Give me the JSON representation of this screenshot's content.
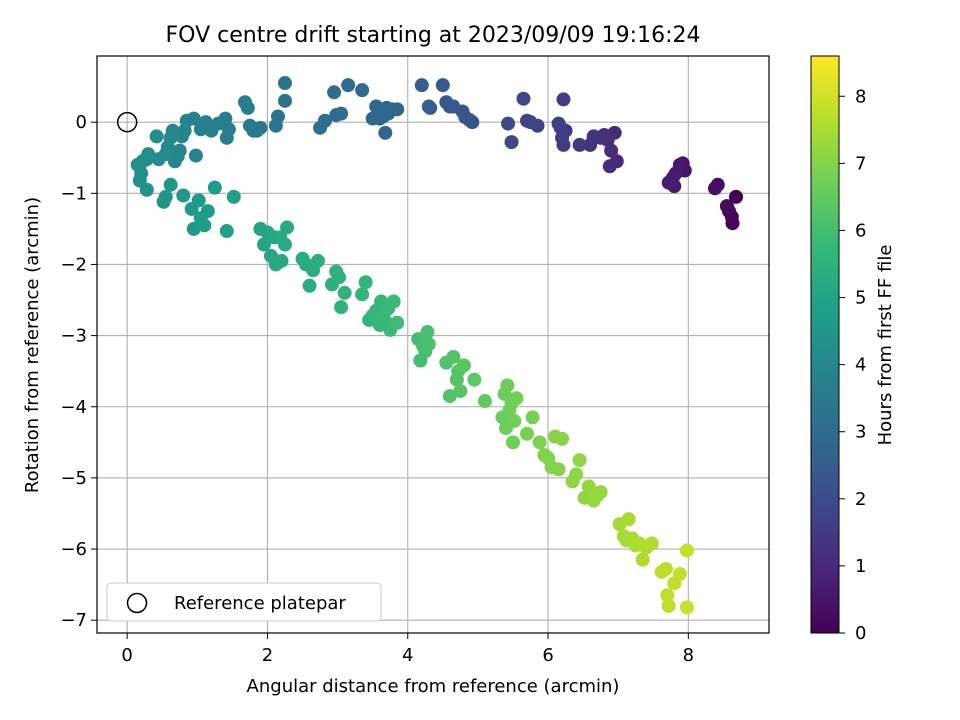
{
  "chart_data": {
    "type": "scatter",
    "title": "FOV centre drift starting at 2023/09/09 19:16:24",
    "xlabel": "Angular distance from reference (arcmin)",
    "ylabel": "Rotation from reference (arcmin)",
    "xlim": [
      -0.43,
      9.15
    ],
    "ylim": [
      -7.18,
      0.93
    ],
    "xticks": [
      0,
      2,
      4,
      6,
      8
    ],
    "yticks": [
      0,
      -1,
      -2,
      -3,
      -4,
      -5,
      -6,
      -7
    ],
    "grid": true,
    "colormap": "viridis",
    "colorbar": {
      "label": "Hours from first FF file",
      "range": [
        0,
        8.6
      ],
      "ticks": [
        0,
        1,
        2,
        3,
        4,
        5,
        6,
        7,
        8
      ]
    },
    "legend": {
      "position": "lower-left",
      "entries": [
        "Reference platepar"
      ]
    },
    "reference_point": {
      "x": 0,
      "y": 0,
      "label": "Reference platepar"
    },
    "points": [
      [
        8.68,
        -1.05,
        0.02
      ],
      [
        8.63,
        -1.42,
        0.1
      ],
      [
        8.62,
        -1.33,
        0.15
      ],
      [
        8.58,
        -1.25,
        0.2
      ],
      [
        8.55,
        -1.18,
        0.25
      ],
      [
        8.42,
        -0.88,
        0.3
      ],
      [
        8.38,
        -0.93,
        0.35
      ],
      [
        7.95,
        -0.68,
        0.5
      ],
      [
        7.92,
        -0.58,
        0.55
      ],
      [
        7.88,
        -0.6,
        0.6
      ],
      [
        7.82,
        -0.72,
        0.62
      ],
      [
        7.8,
        -0.9,
        0.65
      ],
      [
        7.72,
        -0.85,
        0.7
      ],
      [
        7.78,
        -0.78,
        0.68
      ],
      [
        6.98,
        -0.55,
        1.0
      ],
      [
        6.95,
        -0.15,
        1.05
      ],
      [
        6.9,
        -0.4,
        1.08
      ],
      [
        6.88,
        -0.62,
        1.1
      ],
      [
        6.85,
        -0.25,
        1.12
      ],
      [
        6.8,
        -0.18,
        1.15
      ],
      [
        6.75,
        -0.22,
        1.18
      ],
      [
        6.65,
        -0.2,
        1.25
      ],
      [
        6.6,
        -0.32,
        1.3
      ],
      [
        6.45,
        -0.32,
        1.4
      ],
      [
        6.25,
        -0.12,
        1.45
      ],
      [
        6.22,
        -0.32,
        1.5
      ],
      [
        6.2,
        -0.22,
        1.52
      ],
      [
        6.18,
        -0.08,
        1.55
      ],
      [
        6.15,
        -0.02,
        1.6
      ],
      [
        6.22,
        0.32,
        1.62
      ],
      [
        5.85,
        -0.05,
        1.7
      ],
      [
        5.75,
        0.0,
        1.75
      ],
      [
        5.7,
        0.02,
        1.78
      ],
      [
        5.65,
        0.33,
        1.8
      ],
      [
        5.48,
        -0.28,
        1.9
      ],
      [
        5.43,
        -0.02,
        1.95
      ],
      [
        4.92,
        0.0,
        2.2
      ],
      [
        4.88,
        0.03,
        2.25
      ],
      [
        4.82,
        0.07,
        2.28
      ],
      [
        4.78,
        0.15,
        2.3
      ],
      [
        4.65,
        0.22,
        2.35
      ],
      [
        4.6,
        0.22,
        2.38
      ],
      [
        4.55,
        0.28,
        2.4
      ],
      [
        4.5,
        0.52,
        2.45
      ],
      [
        4.32,
        0.2,
        2.5
      ],
      [
        4.3,
        0.22,
        2.52
      ],
      [
        4.2,
        0.52,
        2.55
      ],
      [
        3.85,
        0.18,
        2.7
      ],
      [
        3.78,
        0.18,
        2.72
      ],
      [
        3.72,
        0.12,
        2.75
      ],
      [
        3.7,
        0.2,
        2.77
      ],
      [
        3.68,
        -0.15,
        2.8
      ],
      [
        3.65,
        0.08,
        2.82
      ],
      [
        3.6,
        0.05,
        2.84
      ],
      [
        3.55,
        0.22,
        2.86
      ],
      [
        3.5,
        0.05,
        2.88
      ],
      [
        3.35,
        0.45,
        2.95
      ],
      [
        3.15,
        0.52,
        3.0
      ],
      [
        3.05,
        0.12,
        3.02
      ],
      [
        2.98,
        0.1,
        3.05
      ],
      [
        2.95,
        0.42,
        3.07
      ],
      [
        2.82,
        0.02,
        3.1
      ],
      [
        2.75,
        -0.08,
        3.12
      ],
      [
        2.25,
        0.55,
        3.3
      ],
      [
        2.25,
        0.3,
        3.32
      ],
      [
        2.15,
        0.08,
        3.35
      ],
      [
        2.12,
        -0.05,
        3.37
      ],
      [
        1.9,
        -0.08,
        3.45
      ],
      [
        1.85,
        -0.12,
        3.48
      ],
      [
        1.8,
        -0.12,
        3.5
      ],
      [
        1.75,
        -0.05,
        3.52
      ],
      [
        1.72,
        0.2,
        3.55
      ],
      [
        1.68,
        0.28,
        3.57
      ],
      [
        1.45,
        -0.1,
        3.65
      ],
      [
        1.42,
        -0.22,
        3.68
      ],
      [
        1.4,
        0.05,
        3.7
      ],
      [
        1.3,
        -0.02,
        3.72
      ],
      [
        1.2,
        -0.12,
        3.75
      ],
      [
        1.12,
        0.0,
        3.78
      ],
      [
        1.05,
        -0.1,
        3.8
      ],
      [
        0.98,
        -0.47,
        3.82
      ],
      [
        0.95,
        0.05,
        3.85
      ],
      [
        0.85,
        0.02,
        3.87
      ],
      [
        0.82,
        -0.12,
        3.9
      ],
      [
        0.78,
        -0.2,
        3.92
      ],
      [
        0.75,
        -0.4,
        3.95
      ],
      [
        0.72,
        -0.48,
        3.97
      ],
      [
        0.68,
        -0.55,
        4.0
      ],
      [
        0.65,
        -0.12,
        4.02
      ],
      [
        0.62,
        -0.22,
        4.05
      ],
      [
        0.58,
        -0.35,
        4.07
      ],
      [
        0.55,
        -0.45,
        4.1
      ],
      [
        0.45,
        -0.52,
        4.15
      ],
      [
        0.42,
        -0.2,
        4.17
      ],
      [
        0.3,
        -0.45,
        4.2
      ],
      [
        0.28,
        -0.52,
        4.22
      ],
      [
        0.22,
        -0.55,
        4.25
      ],
      [
        0.18,
        -0.6,
        4.28
      ],
      [
        0.15,
        -0.6,
        4.3
      ],
      [
        0.2,
        -0.72,
        4.32
      ],
      [
        0.18,
        -0.82,
        4.35
      ],
      [
        0.28,
        -0.95,
        4.38
      ],
      [
        0.52,
        -1.12,
        4.45
      ],
      [
        0.55,
        -1.05,
        4.48
      ],
      [
        0.62,
        -0.88,
        4.5
      ],
      [
        0.8,
        -1.03,
        4.55
      ],
      [
        0.92,
        -1.22,
        4.6
      ],
      [
        0.95,
        -1.5,
        4.62
      ],
      [
        1.02,
        -1.1,
        4.65
      ],
      [
        1.05,
        -1.35,
        4.68
      ],
      [
        1.1,
        -1.45,
        4.7
      ],
      [
        1.15,
        -1.25,
        4.72
      ],
      [
        1.25,
        -0.92,
        4.75
      ],
      [
        1.42,
        -1.53,
        4.8
      ],
      [
        1.52,
        -1.05,
        4.85
      ],
      [
        1.9,
        -1.5,
        5.0
      ],
      [
        1.95,
        -1.72,
        5.02
      ],
      [
        2.0,
        -1.55,
        5.05
      ],
      [
        2.05,
        -1.88,
        5.08
      ],
      [
        2.1,
        -1.62,
        5.1
      ],
      [
        2.12,
        -2.0,
        5.12
      ],
      [
        2.18,
        -1.62,
        5.15
      ],
      [
        2.2,
        -1.95,
        5.17
      ],
      [
        2.25,
        -1.72,
        5.2
      ],
      [
        2.28,
        -1.48,
        5.22
      ],
      [
        2.5,
        -1.92,
        5.3
      ],
      [
        2.55,
        -2.0,
        5.32
      ],
      [
        2.6,
        -2.3,
        5.34
      ],
      [
        2.65,
        -2.08,
        5.36
      ],
      [
        2.72,
        -1.95,
        5.38
      ],
      [
        2.92,
        -2.28,
        5.45
      ],
      [
        2.98,
        -2.1,
        5.48
      ],
      [
        3.02,
        -2.18,
        5.5
      ],
      [
        3.05,
        -2.6,
        5.52
      ],
      [
        3.1,
        -2.4,
        5.55
      ],
      [
        3.35,
        -2.42,
        5.6
      ],
      [
        3.4,
        -2.25,
        5.62
      ],
      [
        3.45,
        -2.78,
        5.65
      ],
      [
        3.5,
        -2.72,
        5.67
      ],
      [
        3.55,
        -2.65,
        5.7
      ],
      [
        3.6,
        -2.85,
        5.72
      ],
      [
        3.62,
        -2.52,
        5.74
      ],
      [
        3.65,
        -2.72,
        5.76
      ],
      [
        3.7,
        -2.82,
        5.78
      ],
      [
        3.72,
        -2.62,
        5.8
      ],
      [
        3.75,
        -2.92,
        5.82
      ],
      [
        3.8,
        -2.52,
        5.84
      ],
      [
        3.85,
        -2.82,
        5.86
      ],
      [
        4.15,
        -3.05,
        6.0
      ],
      [
        4.18,
        -3.35,
        6.02
      ],
      [
        4.22,
        -3.15,
        6.04
      ],
      [
        4.25,
        -3.22,
        6.06
      ],
      [
        4.28,
        -2.95,
        6.08
      ],
      [
        4.3,
        -3.12,
        6.1
      ],
      [
        4.55,
        -3.38,
        6.2
      ],
      [
        4.6,
        -3.85,
        6.22
      ],
      [
        4.65,
        -3.3,
        6.24
      ],
      [
        4.7,
        -3.62,
        6.26
      ],
      [
        4.72,
        -3.5,
        6.28
      ],
      [
        4.75,
        -3.78,
        6.3
      ],
      [
        4.8,
        -3.42,
        6.32
      ],
      [
        4.95,
        -3.62,
        6.4
      ],
      [
        5.1,
        -3.92,
        6.5
      ],
      [
        5.35,
        -4.15,
        6.6
      ],
      [
        5.38,
        -3.82,
        6.62
      ],
      [
        5.4,
        -4.3,
        6.64
      ],
      [
        5.42,
        -3.7,
        6.66
      ],
      [
        5.45,
        -4.05,
        6.68
      ],
      [
        5.48,
        -3.95,
        6.7
      ],
      [
        5.5,
        -4.5,
        6.72
      ],
      [
        5.52,
        -4.2,
        6.74
      ],
      [
        5.55,
        -3.88,
        6.76
      ],
      [
        5.7,
        -4.38,
        6.8
      ],
      [
        5.78,
        -4.15,
        6.82
      ],
      [
        5.88,
        -4.5,
        6.9
      ],
      [
        5.95,
        -4.68,
        6.92
      ],
      [
        6.0,
        -4.72,
        6.94
      ],
      [
        6.05,
        -4.85,
        6.96
      ],
      [
        6.1,
        -4.42,
        6.98
      ],
      [
        6.15,
        -4.88,
        7.0
      ],
      [
        6.2,
        -4.45,
        7.02
      ],
      [
        6.35,
        -5.05,
        7.1
      ],
      [
        6.4,
        -4.95,
        7.12
      ],
      [
        6.45,
        -4.75,
        7.14
      ],
      [
        6.52,
        -5.28,
        7.16
      ],
      [
        6.58,
        -5.12,
        7.18
      ],
      [
        6.65,
        -5.32,
        7.2
      ],
      [
        6.7,
        -5.25,
        7.22
      ],
      [
        6.75,
        -5.2,
        7.24
      ],
      [
        7.02,
        -5.65,
        7.4
      ],
      [
        7.08,
        -5.82,
        7.42
      ],
      [
        7.12,
        -5.88,
        7.44
      ],
      [
        7.15,
        -5.58,
        7.46
      ],
      [
        7.2,
        -5.85,
        7.48
      ],
      [
        7.25,
        -5.95,
        7.5
      ],
      [
        7.3,
        -5.92,
        7.52
      ],
      [
        7.35,
        -6.15,
        7.54
      ],
      [
        7.4,
        -5.98,
        7.56
      ],
      [
        7.48,
        -5.92,
        7.58
      ],
      [
        7.62,
        -6.32,
        7.7
      ],
      [
        7.68,
        -6.28,
        7.72
      ],
      [
        7.7,
        -6.65,
        7.74
      ],
      [
        7.72,
        -6.8,
        7.76
      ],
      [
        7.8,
        -6.48,
        7.8
      ],
      [
        7.88,
        -6.35,
        7.82
      ],
      [
        7.98,
        -6.02,
        7.85
      ],
      [
        7.98,
        -6.82,
        7.9
      ]
    ]
  }
}
